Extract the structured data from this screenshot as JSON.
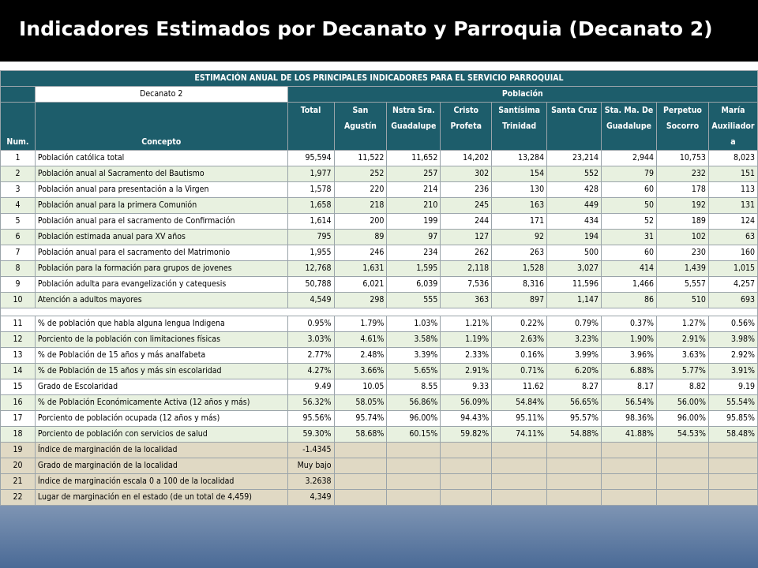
{
  "title": "Indicadores Estimados por Decanato y Parroquia (Decanato 2)",
  "table": {
    "banner": "ESTIMACIÓN ANUAL DE LOS PRINCIPALES INDICADORES PARA EL SERVICIO PARROQUIAL",
    "decanato": "Decanato 2",
    "poblacion": "Población",
    "headers": {
      "num": "Num.",
      "concepto": "Concepto",
      "columns": [
        [
          "Total",
          "",
          ""
        ],
        [
          "San",
          "Agustín",
          ""
        ],
        [
          "Nstra Sra.",
          "Guadalupe",
          ""
        ],
        [
          "Cristo",
          "Profeta",
          ""
        ],
        [
          "Santísima",
          "Trinidad",
          ""
        ],
        [
          "Santa Cruz",
          "",
          ""
        ],
        [
          "Sta. Ma. De",
          "Guadalupe",
          ""
        ],
        [
          "Perpetuo",
          "Socorro",
          ""
        ],
        [
          "María",
          "Auxiliador",
          "a"
        ]
      ]
    },
    "rows": [
      {
        "num": "1",
        "concepto": "Población católica total",
        "values": [
          "95,594",
          "11,522",
          "11,652",
          "14,202",
          "13,284",
          "23,214",
          "2,944",
          "10,753",
          "8,023"
        ]
      },
      {
        "num": "2",
        "concepto": "Población anual al Sacramento del Bautismo",
        "values": [
          "1,977",
          "252",
          "257",
          "302",
          "154",
          "552",
          "79",
          "232",
          "151"
        ]
      },
      {
        "num": "3",
        "concepto": "Población anual para presentación a la Virgen",
        "values": [
          "1,578",
          "220",
          "214",
          "236",
          "130",
          "428",
          "60",
          "178",
          "113"
        ]
      },
      {
        "num": "4",
        "concepto": "Población anual para la primera Comunión",
        "values": [
          "1,658",
          "218",
          "210",
          "245",
          "163",
          "449",
          "50",
          "192",
          "131"
        ]
      },
      {
        "num": "5",
        "concepto": "Población anual para el sacramento de Confirmación",
        "values": [
          "1,614",
          "200",
          "199",
          "244",
          "171",
          "434",
          "52",
          "189",
          "124"
        ]
      },
      {
        "num": "6",
        "concepto": "Población estimada anual para XV años",
        "values": [
          "795",
          "89",
          "97",
          "127",
          "92",
          "194",
          "31",
          "102",
          "63"
        ]
      },
      {
        "num": "7",
        "concepto": "Población anual para el sacramento del Matrimonio",
        "values": [
          "1,955",
          "246",
          "234",
          "262",
          "263",
          "500",
          "60",
          "230",
          "160"
        ]
      },
      {
        "num": "8",
        "concepto": "Población para la formación para grupos de jovenes",
        "values": [
          "12,768",
          "1,631",
          "1,595",
          "2,118",
          "1,528",
          "3,027",
          "414",
          "1,439",
          "1,015"
        ]
      },
      {
        "num": "9",
        "concepto": "Población adulta para evangelización y catequesis",
        "values": [
          "50,788",
          "6,021",
          "6,039",
          "7,536",
          "8,316",
          "11,596",
          "1,466",
          "5,557",
          "4,257"
        ]
      },
      {
        "num": "10",
        "concepto": "Atención a adultos mayores",
        "values": [
          "4,549",
          "298",
          "555",
          "363",
          "897",
          "1,147",
          "86",
          "510",
          "693"
        ]
      },
      {
        "num": "11",
        "concepto": "% de población que habla alguna lengua Indigena",
        "values": [
          "0.95%",
          "1.79%",
          "1.03%",
          "1.21%",
          "0.22%",
          "0.79%",
          "0.37%",
          "1.27%",
          "0.56%"
        ]
      },
      {
        "num": "12",
        "concepto": "Porciento de la población con limitaciones físicas",
        "values": [
          "3.03%",
          "4.61%",
          "3.58%",
          "1.19%",
          "2.63%",
          "3.23%",
          "1.90%",
          "2.91%",
          "3.98%"
        ]
      },
      {
        "num": "13",
        "concepto": "% de Población de 15 años y más analfabeta",
        "values": [
          "2.77%",
          "2.48%",
          "3.39%",
          "2.33%",
          "0.16%",
          "3.99%",
          "3.96%",
          "3.63%",
          "2.92%"
        ]
      },
      {
        "num": "14",
        "concepto": "% de Población de 15 años y más sin escolaridad",
        "values": [
          "4.27%",
          "3.66%",
          "5.65%",
          "2.91%",
          "0.71%",
          "6.20%",
          "6.88%",
          "5.77%",
          "3.91%"
        ]
      },
      {
        "num": "15",
        "concepto": "Grado de Escolaridad",
        "values": [
          "9.49",
          "10.05",
          "8.55",
          "9.33",
          "11.62",
          "8.27",
          "8.17",
          "8.82",
          "9.19"
        ]
      },
      {
        "num": "16",
        "concepto": "% de Población Económicamente Activa (12 años y más)",
        "values": [
          "56.32%",
          "58.05%",
          "56.86%",
          "56.09%",
          "54.84%",
          "56.65%",
          "56.54%",
          "56.00%",
          "55.54%"
        ]
      },
      {
        "num": "17",
        "concepto": "Porciento de población ocupada (12 años y más)",
        "values": [
          "95.56%",
          "95.74%",
          "96.00%",
          "94.43%",
          "95.11%",
          "95.57%",
          "98.36%",
          "96.00%",
          "95.85%"
        ]
      },
      {
        "num": "18",
        "concepto": "Porciento de población con servicios de salud",
        "values": [
          "59.30%",
          "58.68%",
          "60.15%",
          "59.82%",
          "74.11%",
          "54.88%",
          "41.88%",
          "54.53%",
          "58.48%"
        ]
      },
      {
        "num": "19",
        "concepto": "Índice de marginación de la localidad",
        "values": [
          "-1.4345",
          "",
          "",
          "",
          "",
          "",
          "",
          "",
          ""
        ]
      },
      {
        "num": "20",
        "concepto": "Grado de marginación de  la localidad",
        "values": [
          "Muy bajo",
          "",
          "",
          "",
          "",
          "",
          "",
          "",
          ""
        ]
      },
      {
        "num": "21",
        "concepto": "Índice de marginación escala 0 a 100 de la localidad",
        "values": [
          "3.2638",
          "",
          "",
          "",
          "",
          "",
          "",
          "",
          ""
        ]
      },
      {
        "num": "22",
        "concepto": "Lugar de marginación en el estado (de un total de 4,459)",
        "values": [
          "4,349",
          "",
          "",
          "",
          "",
          "",
          "",
          "",
          ""
        ]
      }
    ]
  }
}
